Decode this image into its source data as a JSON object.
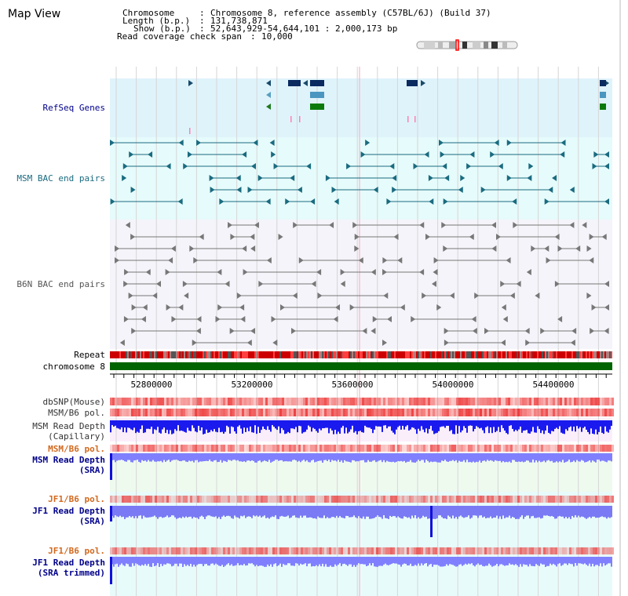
{
  "page": {
    "title": "Map View"
  },
  "header": {
    "chromosome_label": "Chromosome",
    "chromosome_value": "Chromosome 8, reference assembly (C57BL/6J) (Build 37)",
    "length_label": "Length (b.p.)",
    "length_value": "131,738,871",
    "show_label": "Show (b.p.)",
    "show_value": "52,643,929-54,644,101 : 2,000,173 bp",
    "coverage_label": "Read coverage check span",
    "coverage_value": "10,000"
  },
  "tracks": {
    "refseq": "RefSeq Genes",
    "msm_bac": "MSM BAC end pairs",
    "b6n_bac": "B6N BAC end pairs",
    "repeat": "Repeat",
    "chromosome": "chromosome 8",
    "dbsnp": "dbSNP(Mouse)",
    "msm_b6_pol_1": "MSM/B6 pol.",
    "msm_read_depth_cap_1": "MSM Read Depth",
    "msm_read_depth_cap_2": "(Capillary)",
    "msm_b6_pol_2": "MSM/B6 pol.",
    "msm_read_depth_sra_1": "MSM Read Depth",
    "msm_read_depth_sra_2": "(SRA)",
    "jf1_b6_pol_1": "JF1/B6 pol.",
    "jf1_read_depth_sra_1": "JF1 Read Depth",
    "jf1_read_depth_sra_2": "(SRA)",
    "jf1_b6_pol_2": "JF1/B6 pol.",
    "jf1_read_depth_trim_1": "JF1 Read Depth",
    "jf1_read_depth_trim_2": "(SRA trimmed)"
  },
  "axis": {
    "ticks": [
      "52800000",
      "53200000",
      "53600000",
      "54000000",
      "54400000"
    ]
  },
  "colors": {
    "label_blue": "#00008b",
    "label_orange": "#d2691e",
    "msm_teal": "#1a6b80",
    "b6n_gray": "#555555",
    "refseq_bg": "#dff3fb",
    "msm_bg": "#e6fbfb",
    "b6n_bg": "#f4f4fa",
    "chromosome_green": "#006400"
  }
}
